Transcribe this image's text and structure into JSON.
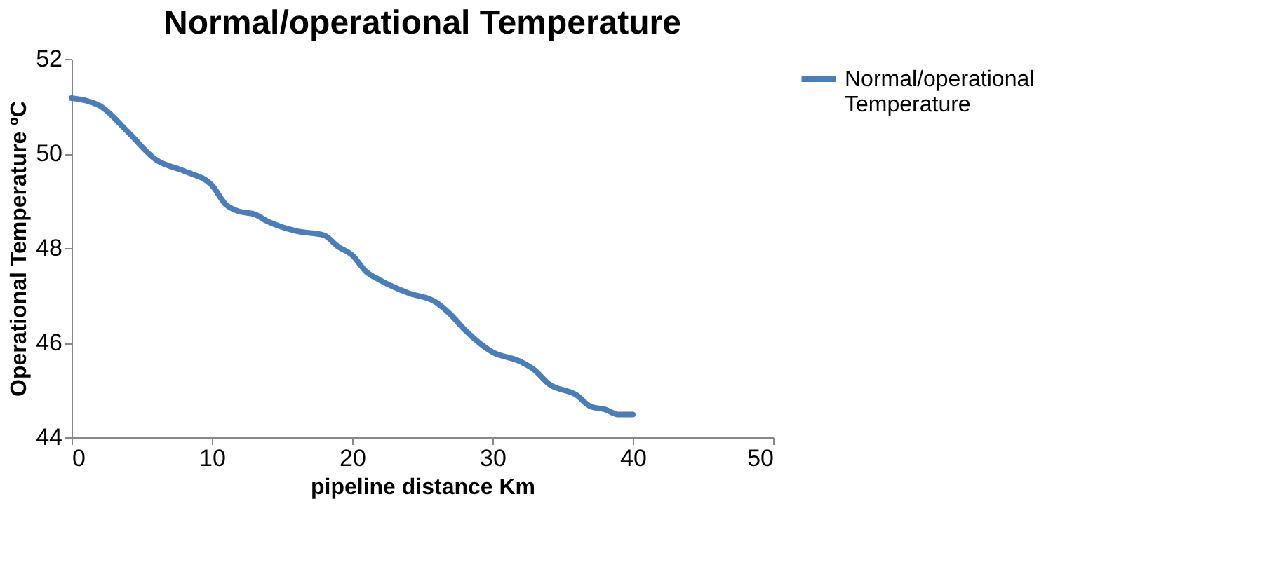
{
  "chart_data": {
    "type": "line",
    "title": "Normal/operational Temperature",
    "xlabel": "pipeline distance Km",
    "ylabel": "Operational Temperature ºC",
    "x": [
      0,
      2,
      4,
      6,
      8,
      10,
      11,
      12,
      13,
      14,
      16,
      18,
      19,
      20,
      21,
      22,
      24,
      26,
      27,
      28,
      30,
      32,
      33,
      34,
      36,
      37,
      38,
      39,
      40
    ],
    "series": [
      {
        "name": "Normal/operational Temperature",
        "color": "#4a7ebb",
        "values": [
          51.17,
          51.01,
          50.46,
          49.87,
          49.63,
          49.33,
          48.92,
          48.77,
          48.72,
          48.56,
          48.36,
          48.27,
          48.03,
          47.85,
          47.5,
          47.32,
          47.05,
          46.85,
          46.6,
          46.28,
          45.8,
          45.6,
          45.42,
          45.13,
          44.89,
          44.65,
          44.59,
          44.48,
          44.48
        ]
      }
    ],
    "xlim": [
      0,
      50
    ],
    "xticks": [
      0,
      10,
      20,
      30,
      40,
      50
    ],
    "ylim": [
      44,
      52
    ],
    "yticks": [
      44,
      46,
      48,
      50,
      52
    ],
    "grid": false,
    "legend": "right",
    "marker": "none",
    "line_style": "solid"
  }
}
